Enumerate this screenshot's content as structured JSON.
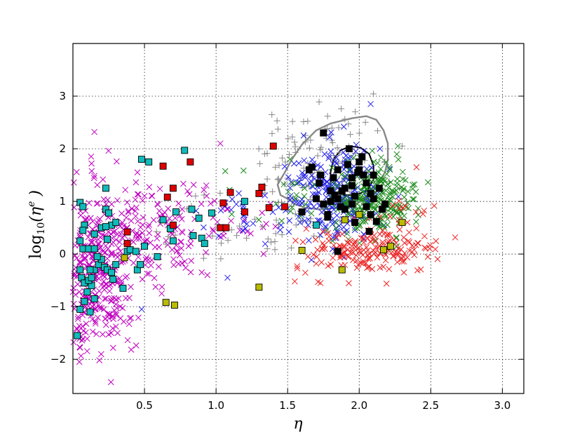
{
  "chart_data": {
    "type": "scatter",
    "title": "",
    "xlabel": "η",
    "ylabel_main": "log",
    "ylabel_sub": "10",
    "ylabel_arg": "(η",
    "ylabel_sup": "e",
    "ylabel_close": " )",
    "xlim": [
      0.0,
      3.15
    ],
    "ylim": [
      -2.65,
      4.0
    ],
    "grid": true,
    "x_ticks": [
      {
        "value": 0.5,
        "label": "0.5"
      },
      {
        "value": 1.0,
        "label": "1.0"
      },
      {
        "value": 1.5,
        "label": "1.5"
      },
      {
        "value": 2.0,
        "label": "2.0"
      },
      {
        "value": 2.5,
        "label": "2.5"
      },
      {
        "value": 3.0,
        "label": "3.0"
      }
    ],
    "y_ticks": [
      {
        "value": -2,
        "label": "−2"
      },
      {
        "value": -1,
        "label": "−1"
      },
      {
        "value": 0,
        "label": "0"
      },
      {
        "value": 1,
        "label": "1"
      },
      {
        "value": 2,
        "label": "2"
      },
      {
        "value": 3,
        "label": "3"
      }
    ],
    "series": [
      {
        "marker": "x",
        "color": "#bf00bf",
        "clusters": [
          {
            "n": 360,
            "cx": 0.15,
            "cy": -0.45,
            "sx": 0.14,
            "sy": 0.75
          },
          {
            "n": 180,
            "cx": 0.45,
            "cy": 0.45,
            "sx": 0.3,
            "sy": 0.5
          },
          {
            "n": 40,
            "cx": 1.0,
            "cy": 0.75,
            "sx": 0.3,
            "sy": 0.35
          }
        ],
        "points": [
          [
            0.15,
            2.32
          ],
          [
            0.13,
            1.72
          ],
          [
            1.03,
            2.1
          ],
          [
            0.9,
            -0.35
          ],
          [
            0.62,
            -0.75
          ],
          [
            1.38,
            0.95
          ]
        ]
      },
      {
        "marker": "+",
        "color": "#888888",
        "clusters": [
          {
            "n": 130,
            "cx": 1.75,
            "cy": 1.65,
            "sx": 0.25,
            "sy": 0.55
          },
          {
            "n": 40,
            "cx": 1.2,
            "cy": 0.55,
            "sx": 0.3,
            "sy": 0.35
          }
        ],
        "points": []
      },
      {
        "marker": "x",
        "color": "#2222ee",
        "clusters": [
          {
            "n": 230,
            "cx": 1.83,
            "cy": 1.15,
            "sx": 0.17,
            "sy": 0.45
          },
          {
            "n": 40,
            "cx": 1.3,
            "cy": 0.75,
            "sx": 0.3,
            "sy": 0.3
          }
        ],
        "points": [
          [
            0.48,
            -1.05
          ],
          [
            1.08,
            -0.45
          ],
          [
            2.08,
            2.85
          ]
        ]
      },
      {
        "marker": "x",
        "color": "#1a8a1a",
        "clusters": [
          {
            "n": 230,
            "cx": 2.12,
            "cy": 1.05,
            "sx": 0.14,
            "sy": 0.35
          },
          {
            "n": 30,
            "cx": 1.55,
            "cy": 1.1,
            "sx": 0.25,
            "sy": 0.3
          }
        ],
        "points": [
          [
            2.27,
            2.05
          ]
        ]
      },
      {
        "marker": "x",
        "color": "#ee2222",
        "clusters": [
          {
            "n": 150,
            "cx": 2.05,
            "cy": 0.05,
            "sx": 0.25,
            "sy": 0.2
          },
          {
            "n": 40,
            "cx": 2.3,
            "cy": 0.45,
            "sx": 0.15,
            "sy": 0.35
          }
        ],
        "points": [
          [
            1.55,
            -0.52
          ],
          [
            1.73,
            -0.55
          ],
          [
            2.4,
            1.65
          ]
        ]
      },
      {
        "marker": "square",
        "color": "#11bbbb",
        "points": [
          [
            0.05,
            0.98
          ],
          [
            0.07,
            0.9
          ],
          [
            0.08,
            0.55
          ],
          [
            0.07,
            0.45
          ],
          [
            0.05,
            0.25
          ],
          [
            0.07,
            0.1
          ],
          [
            0.11,
            0.1
          ],
          [
            0.05,
            -0.3
          ],
          [
            0.06,
            -0.45
          ],
          [
            0.08,
            -0.55
          ],
          [
            0.1,
            -0.72
          ],
          [
            0.08,
            -0.9
          ],
          [
            0.05,
            -1.05
          ],
          [
            0.03,
            -1.55
          ],
          [
            0.13,
            -0.6
          ],
          [
            0.11,
            -0.5
          ],
          [
            0.13,
            -0.45
          ],
          [
            0.15,
            -0.3
          ],
          [
            0.18,
            -0.2
          ],
          [
            0.2,
            -0.1
          ],
          [
            0.22,
            -0.25
          ],
          [
            0.24,
            -0.3
          ],
          [
            0.27,
            -0.35
          ],
          [
            0.28,
            -0.48
          ],
          [
            0.3,
            -0.2
          ],
          [
            0.17,
            -0.05
          ],
          [
            0.15,
            0.1
          ],
          [
            0.12,
            -0.3
          ],
          [
            0.15,
            -0.85
          ],
          [
            0.12,
            -1.1
          ],
          [
            0.23,
            1.25
          ],
          [
            0.23,
            0.85
          ],
          [
            0.25,
            0.78
          ],
          [
            0.27,
            0.55
          ],
          [
            0.3,
            0.6
          ],
          [
            0.2,
            0.5
          ],
          [
            0.23,
            0.52
          ],
          [
            0.15,
            0.38
          ],
          [
            0.24,
            0.28
          ],
          [
            0.35,
            -0.65
          ],
          [
            0.38,
            0.05
          ],
          [
            0.4,
            0.08
          ],
          [
            0.44,
            0.05
          ],
          [
            0.45,
            -0.3
          ],
          [
            0.47,
            -0.2
          ],
          [
            0.5,
            0.15
          ],
          [
            0.48,
            1.8
          ],
          [
            0.53,
            1.75
          ],
          [
            0.59,
            -0.05
          ],
          [
            0.63,
            0.65
          ],
          [
            0.68,
            0.48
          ],
          [
            0.72,
            0.8
          ],
          [
            0.7,
            0.25
          ],
          [
            0.78,
            1.97
          ],
          [
            0.83,
            0.85
          ],
          [
            0.84,
            0.35
          ],
          [
            0.88,
            0.68
          ],
          [
            0.9,
            0.3
          ],
          [
            0.92,
            0.2
          ],
          [
            0.97,
            0.78
          ],
          [
            1.2,
            1.0
          ],
          [
            1.7,
            0.55
          ]
        ]
      },
      {
        "marker": "square",
        "color": "#dd0000",
        "points": [
          [
            0.38,
            0.2
          ],
          [
            0.38,
            0.42
          ],
          [
            0.63,
            1.67
          ],
          [
            0.66,
            1.08
          ],
          [
            0.7,
            1.25
          ],
          [
            0.7,
            0.55
          ],
          [
            0.82,
            1.75
          ],
          [
            1.03,
            0.5
          ],
          [
            1.07,
            0.5
          ],
          [
            1.05,
            0.97
          ],
          [
            1.1,
            1.17
          ],
          [
            1.2,
            0.8
          ],
          [
            1.3,
            1.15
          ],
          [
            1.32,
            1.27
          ],
          [
            1.37,
            0.88
          ],
          [
            1.4,
            2.05
          ],
          [
            1.48,
            0.9
          ]
        ]
      },
      {
        "marker": "square",
        "color": "#bbbb00",
        "points": [
          [
            0.36,
            -0.07
          ],
          [
            0.65,
            -0.92
          ],
          [
            0.71,
            -0.97
          ],
          [
            1.3,
            -0.63
          ],
          [
            1.6,
            0.07
          ],
          [
            1.88,
            -0.3
          ],
          [
            1.9,
            0.65
          ],
          [
            2.0,
            0.75
          ],
          [
            2.17,
            0.08
          ],
          [
            2.22,
            0.15
          ],
          [
            2.3,
            0.6
          ]
        ]
      },
      {
        "marker": "square",
        "color": "#000000",
        "points": [
          [
            1.6,
            0.8
          ],
          [
            1.65,
            1.6
          ],
          [
            1.67,
            1.65
          ],
          [
            1.7,
            1.05
          ],
          [
            1.73,
            1.5
          ],
          [
            1.75,
            2.3
          ],
          [
            1.78,
            0.75
          ],
          [
            1.8,
            1.2
          ],
          [
            1.82,
            1.45
          ],
          [
            1.85,
            1.05
          ],
          [
            1.87,
            0.9
          ],
          [
            1.88,
            1.2
          ],
          [
            1.9,
            0.85
          ],
          [
            1.92,
            1.7
          ],
          [
            1.93,
            2.0
          ],
          [
            1.95,
            1.3
          ],
          [
            1.95,
            0.95
          ],
          [
            1.97,
            1.1
          ],
          [
            1.97,
            0.6
          ],
          [
            1.99,
            1.55
          ],
          [
            2.0,
            1.75
          ],
          [
            2.02,
            1.85
          ],
          [
            2.03,
            1.5
          ],
          [
            2.05,
            1.35
          ],
          [
            2.05,
            0.9
          ],
          [
            2.08,
            1.15
          ],
          [
            2.08,
            0.75
          ],
          [
            2.1,
            1.05
          ],
          [
            2.12,
            0.62
          ],
          [
            2.14,
            1.25
          ],
          [
            2.16,
            0.85
          ],
          [
            2.18,
            0.95
          ],
          [
            1.8,
            1.0
          ],
          [
            1.83,
            1.12
          ],
          [
            1.9,
            1.25
          ],
          [
            1.75,
            0.95
          ],
          [
            1.78,
            0.7
          ],
          [
            1.85,
            0.05
          ],
          [
            2.07,
            0.43
          ],
          [
            1.85,
            1.6
          ],
          [
            2.0,
            1.6
          ],
          [
            2.1,
            1.5
          ],
          [
            1.72,
            1.35
          ],
          [
            1.95,
            1.45
          ]
        ]
      }
    ],
    "contours": [
      {
        "color": "#888888",
        "width": 2.4,
        "path": [
          [
            1.45,
            1.12
          ],
          [
            1.43,
            1.32
          ],
          [
            1.48,
            1.55
          ],
          [
            1.53,
            1.8
          ],
          [
            1.6,
            2.08
          ],
          [
            1.7,
            2.35
          ],
          [
            1.8,
            2.48
          ],
          [
            1.95,
            2.58
          ],
          [
            2.05,
            2.62
          ],
          [
            2.12,
            2.55
          ],
          [
            2.17,
            2.35
          ],
          [
            2.2,
            2.1
          ],
          [
            2.2,
            1.8
          ],
          [
            2.18,
            1.55
          ],
          [
            2.12,
            1.28
          ],
          [
            2.05,
            1.05
          ],
          [
            1.95,
            0.92
          ],
          [
            1.85,
            0.88
          ],
          [
            1.72,
            0.85
          ],
          [
            1.62,
            0.88
          ],
          [
            1.55,
            0.95
          ],
          [
            1.5,
            1.05
          ],
          [
            1.45,
            1.12
          ]
        ]
      },
      {
        "color": "#000000",
        "width": 2.0,
        "path": [
          [
            1.8,
            1.22
          ],
          [
            1.8,
            1.55
          ],
          [
            1.82,
            1.8
          ],
          [
            1.87,
            1.97
          ],
          [
            1.94,
            2.05
          ],
          [
            2.01,
            2.02
          ],
          [
            2.07,
            1.9
          ],
          [
            2.1,
            1.68
          ],
          [
            2.1,
            1.42
          ],
          [
            2.06,
            1.22
          ],
          [
            1.98,
            1.12
          ],
          [
            1.9,
            1.12
          ],
          [
            1.84,
            1.15
          ],
          [
            1.8,
            1.22
          ]
        ]
      }
    ]
  }
}
